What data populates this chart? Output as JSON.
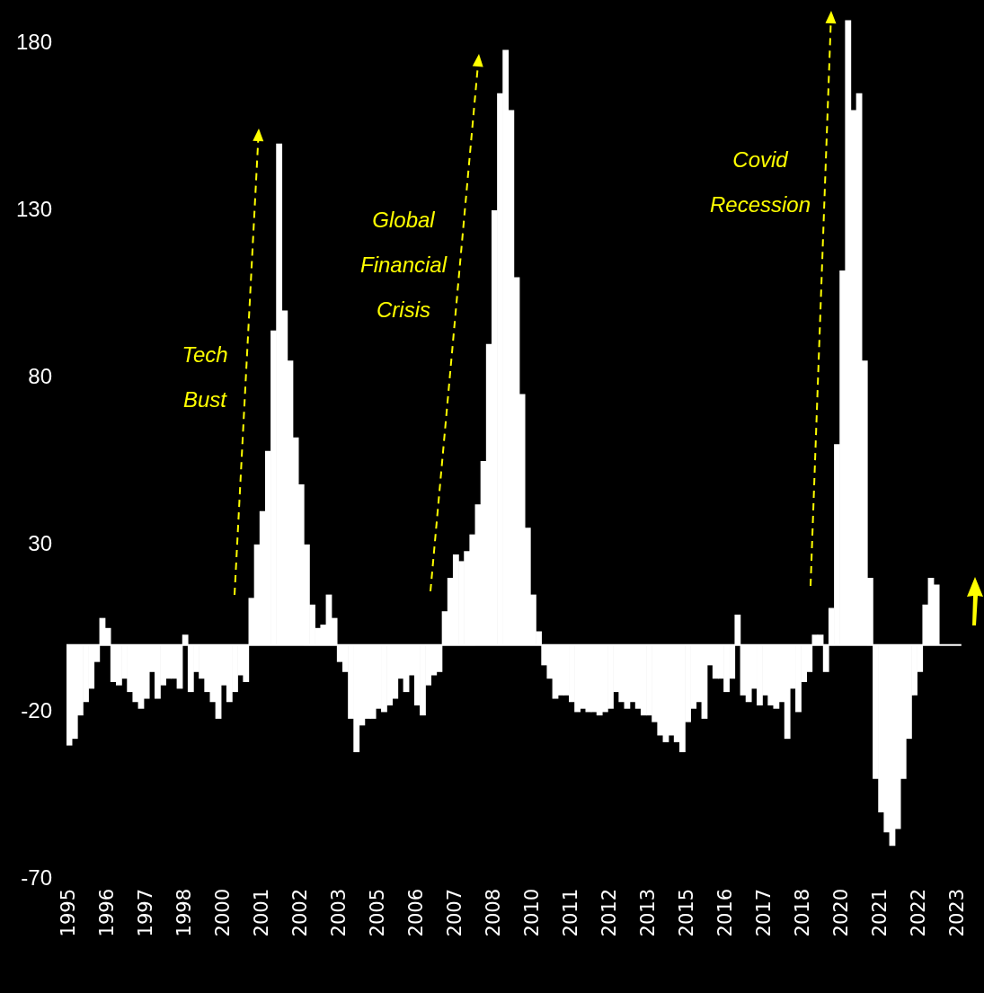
{
  "chart_data": {
    "type": "bar",
    "categories": [
      "1995",
      null,
      null,
      null,
      null,
      null,
      null,
      "1996",
      null,
      null,
      null,
      null,
      null,
      null,
      "1997",
      null,
      null,
      null,
      null,
      null,
      null,
      "1998",
      null,
      null,
      null,
      null,
      null,
      null,
      "2000",
      null,
      null,
      null,
      null,
      null,
      null,
      "2001",
      null,
      null,
      null,
      null,
      null,
      null,
      "2002",
      null,
      null,
      null,
      null,
      null,
      null,
      "2003",
      null,
      null,
      null,
      null,
      null,
      null,
      "2005",
      null,
      null,
      null,
      null,
      null,
      null,
      "2006",
      null,
      null,
      null,
      null,
      null,
      null,
      "2007",
      null,
      null,
      null,
      null,
      null,
      null,
      "2008",
      null,
      null,
      null,
      null,
      null,
      null,
      "2010",
      null,
      null,
      null,
      null,
      null,
      null,
      "2011",
      null,
      null,
      null,
      null,
      null,
      null,
      "2012",
      null,
      null,
      null,
      null,
      null,
      null,
      "2013",
      null,
      null,
      null,
      null,
      null,
      null,
      "2015",
      null,
      null,
      null,
      null,
      null,
      null,
      "2016",
      null,
      null,
      null,
      null,
      null,
      null,
      "2017",
      null,
      null,
      null,
      null,
      null,
      null,
      "2018",
      null,
      null,
      null,
      null,
      null,
      null,
      "2020",
      null,
      null,
      null,
      null,
      null,
      null,
      "2021",
      null,
      null,
      null,
      null,
      null,
      null,
      "2022",
      null,
      null,
      null,
      null,
      null,
      null,
      "2023"
    ],
    "values": [
      -30,
      -28,
      -21,
      -17,
      -13,
      -5,
      8,
      5,
      -11,
      -12,
      -10,
      -14,
      -17,
      -19,
      -16,
      -8,
      -16,
      -12,
      -10,
      -10,
      -13,
      3,
      -14,
      -8,
      -10,
      -14,
      -17,
      -22,
      -12,
      -17,
      -14,
      -9,
      -11,
      14,
      30,
      40,
      58,
      94,
      150,
      100,
      85,
      62,
      48,
      30,
      12,
      5,
      6,
      15,
      8,
      -5,
      -8,
      -22,
      -32,
      -24,
      -22,
      -22,
      -19,
      -20,
      -18,
      -16,
      -10,
      -14,
      -9,
      -18,
      -21,
      -12,
      -9,
      -8,
      10,
      20,
      27,
      25,
      28,
      33,
      42,
      55,
      90,
      130,
      165,
      178,
      160,
      110,
      75,
      35,
      15,
      4,
      -6,
      -10,
      -16,
      -15,
      -15,
      -17,
      -20,
      -19,
      -20,
      -20,
      -21,
      -20,
      -19,
      -14,
      -17,
      -19,
      -17,
      -19,
      -21,
      -21,
      -23,
      -27,
      -29,
      -27,
      -29,
      -32,
      -23,
      -19,
      -17,
      -22,
      -6,
      -10,
      -10,
      -14,
      -10,
      9,
      -15,
      -17,
      -13,
      -18,
      -15,
      -18,
      -19,
      -17,
      -28,
      -13,
      -20,
      -11,
      -8,
      3,
      3,
      -8,
      11,
      60,
      112,
      187,
      160,
      165,
      85,
      20,
      -40,
      -50,
      -56,
      -60,
      -55,
      -40,
      -28,
      -15,
      -8,
      12,
      20,
      18,
      null,
      null,
      null,
      null
    ],
    "color": "#ffffff",
    "ylim": [
      -70,
      187
    ],
    "yticks": [
      -70,
      -20,
      30,
      80,
      130,
      180
    ],
    "ref_lines": [
      {
        "axis": "y",
        "value": 0,
        "color": "#ffffff"
      }
    ],
    "annotations": [
      "Tech Bust",
      "Global Financial Crisis",
      "Covid Recession"
    ]
  }
}
